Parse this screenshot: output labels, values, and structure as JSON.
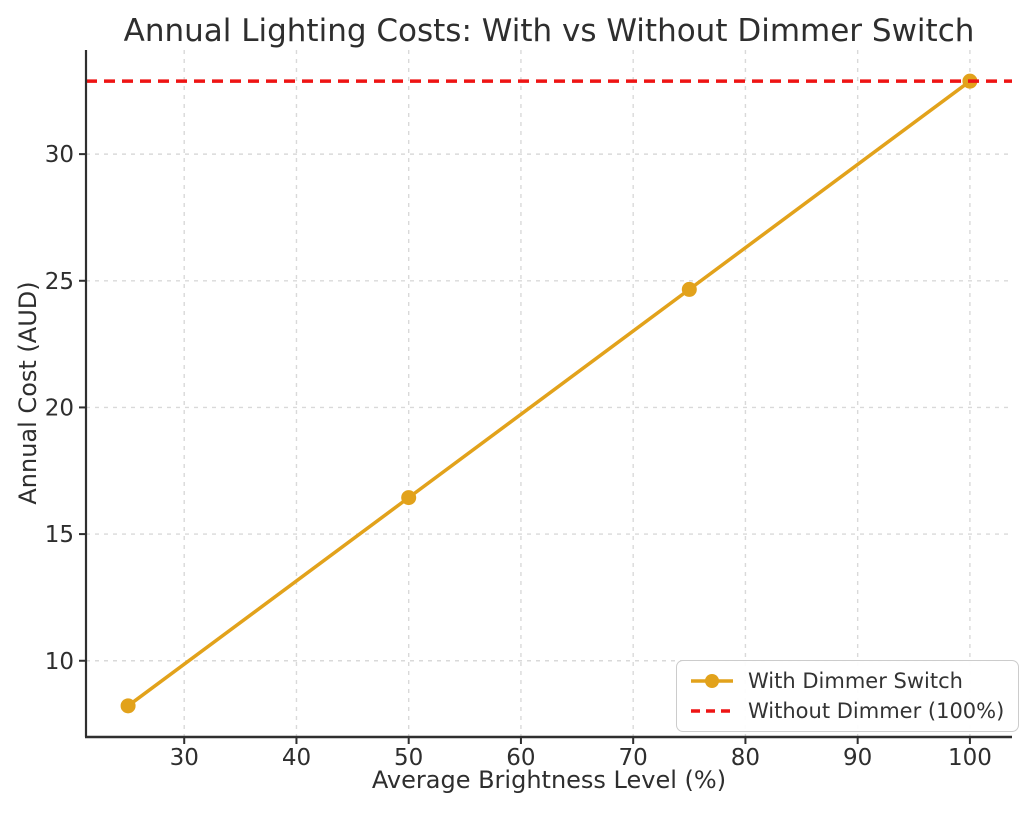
{
  "chart_data": {
    "type": "line",
    "title": "Annual Lighting Costs: With vs Without Dimmer Switch",
    "xlabel": "Average Brightness Level (%)",
    "ylabel": "Annual Cost (AUD)",
    "xlim": [
      21.25,
      103.75
    ],
    "ylim": [
      6.99,
      34.11
    ],
    "x_ticks": [
      30,
      40,
      50,
      60,
      70,
      80,
      90,
      100
    ],
    "y_ticks": [
      10,
      15,
      20,
      25,
      30
    ],
    "grid": {
      "on": true,
      "style": "dashed",
      "color": "#d9d9d9"
    },
    "legend_position": "lower right",
    "series": [
      {
        "name": "With Dimmer Switch",
        "style": "solid-line-with-markers",
        "color": "#E2A21B",
        "x": [
          25,
          50,
          75,
          100
        ],
        "y": [
          8.22,
          16.44,
          24.66,
          32.88
        ]
      },
      {
        "name": "Without Dimmer (100%)",
        "style": "dashed-hline",
        "color": "#EE1414",
        "y": 32.88
      }
    ]
  }
}
